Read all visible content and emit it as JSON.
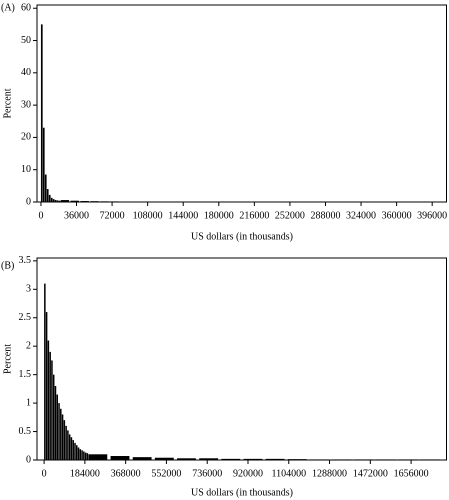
{
  "chart_data": [
    {
      "type": "histogram",
      "label": "(A)",
      "ylabel": "Percent",
      "xlabel": "US dollars (in thousands)",
      "color": "#000000",
      "bins": [
        0,
        2000,
        4000,
        6000,
        8000,
        10000,
        12000,
        14000,
        16000,
        18000,
        20000,
        30000,
        40000,
        50000,
        60000,
        70000,
        80000,
        90000,
        100000,
        110000,
        120000,
        130000,
        140000,
        150000,
        160000,
        170000,
        180000,
        190000,
        200000,
        210000,
        220000,
        230000,
        240000,
        250000,
        260000,
        270000,
        280000,
        290000,
        300000,
        310000,
        320000,
        330000,
        340000,
        350000,
        360000,
        370000,
        380000,
        390000,
        400000
      ],
      "values": [
        55,
        23,
        8.5,
        4,
        2.2,
        1.3,
        0.9,
        0.6,
        0.5,
        0.4,
        0.6,
        0.4,
        0.3,
        0.25,
        0.2,
        0.18,
        0.15,
        0.13,
        0.12,
        0.1,
        0.08,
        0.08,
        0.08,
        0.08,
        0.08,
        0.08,
        0.08,
        0.08,
        0.06,
        0.06,
        0.06,
        0.06,
        0.06,
        0.06,
        0.06,
        0.06,
        0.06,
        0.06,
        0.05,
        0.05,
        0.05,
        0.05,
        0.05,
        0.05,
        0.05,
        0.05,
        0.05,
        0.05
      ],
      "xlim": [
        -4000,
        411000
      ],
      "ylim": [
        0,
        61
      ],
      "xticks": [
        0,
        36000,
        72000,
        108000,
        144000,
        180000,
        216000,
        252000,
        288000,
        324000,
        360000,
        396000
      ],
      "yticks": [
        0,
        10,
        20,
        30,
        40,
        50,
        60
      ]
    },
    {
      "type": "histogram",
      "label": "(B)",
      "ylabel": "Percent",
      "xlabel": "US dollars (in thousands)",
      "color": "#000000",
      "bins": [
        0,
        8000,
        16000,
        24000,
        32000,
        40000,
        48000,
        56000,
        64000,
        72000,
        80000,
        88000,
        96000,
        104000,
        112000,
        120000,
        128000,
        136000,
        144000,
        152000,
        160000,
        168000,
        176000,
        184000,
        192000,
        200000,
        300000,
        400000,
        500000,
        600000,
        700000,
        800000,
        900000,
        1000000,
        1100000,
        1200000,
        1300000,
        1400000,
        1500000,
        1600000,
        1700000,
        1800000
      ],
      "values": [
        3.1,
        2.6,
        2.1,
        1.9,
        1.75,
        1.5,
        1.3,
        1.15,
        1.0,
        0.9,
        0.8,
        0.7,
        0.6,
        0.52,
        0.45,
        0.4,
        0.35,
        0.3,
        0.26,
        0.22,
        0.19,
        0.17,
        0.15,
        0.13,
        0.12,
        0.1,
        0.07,
        0.05,
        0.04,
        0.03,
        0.03,
        0.02,
        0.02,
        0.02,
        0.015,
        0.01,
        0.01,
        0.01,
        0.01,
        0.01,
        0.01
      ],
      "xlim": [
        -32000,
        1818000
      ],
      "ylim": [
        0,
        3.55
      ],
      "xticks": [
        0,
        184000,
        368000,
        552000,
        736000,
        920000,
        1104000,
        1288000,
        1472000,
        1656000
      ],
      "yticks": [
        0,
        0.5,
        1,
        1.5,
        2,
        2.5,
        3,
        3.5
      ]
    }
  ]
}
